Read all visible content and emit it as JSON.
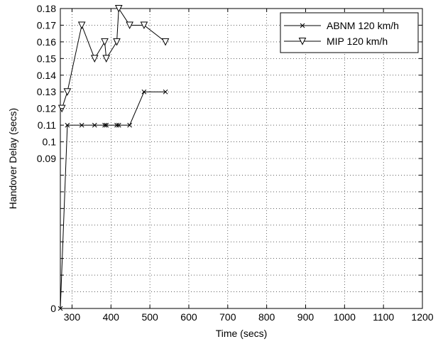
{
  "chart_data": {
    "type": "line",
    "xlabel": "Time (secs)",
    "ylabel": "Handover Delay (secs)",
    "xlim": [
      270,
      1200
    ],
    "ylim": [
      0,
      0.18
    ],
    "x_ticks": [
      300,
      400,
      500,
      600,
      700,
      800,
      900,
      1000,
      1100,
      1200
    ],
    "x_tick_labels": [
      "300",
      "400",
      "500",
      "600",
      "700",
      "800",
      "900",
      "1000",
      "1100",
      "1200"
    ],
    "y_ticks": [
      0,
      0.01,
      0.02,
      0.03,
      0.04,
      0.05,
      0.06,
      0.07,
      0.08,
      0.09,
      0.1,
      0.11,
      0.12,
      0.13,
      0.14,
      0.15,
      0.16,
      0.17,
      0.18
    ],
    "y_tick_labels": [
      "0",
      "",
      "",
      "",
      "",
      "",
      "",
      "",
      "",
      "0.09",
      "0.1",
      "0.11",
      "0.12",
      "0.13",
      "0.14",
      "0.15",
      "0.16",
      "0.17",
      "0.18"
    ],
    "grid": true,
    "legend_position": "top-right",
    "series": [
      {
        "name": "ABNM 120 km/h",
        "marker": "x",
        "color": "#000000",
        "x": [
          270,
          288,
          325,
          358,
          384,
          388,
          415,
          420,
          448,
          485,
          540
        ],
        "y": [
          0,
          0.11,
          0.11,
          0.11,
          0.11,
          0.11,
          0.11,
          0.11,
          0.11,
          0.13,
          0.13
        ]
      },
      {
        "name": "MIP 120 km/h",
        "marker": "triangle-down",
        "color": "#000000",
        "x": [
          274,
          288,
          325,
          358,
          384,
          388,
          415,
          420,
          448,
          485,
          540
        ],
        "y": [
          0.12,
          0.13,
          0.17,
          0.15,
          0.16,
          0.15,
          0.16,
          0.18,
          0.17,
          0.17,
          0.16
        ]
      }
    ]
  }
}
